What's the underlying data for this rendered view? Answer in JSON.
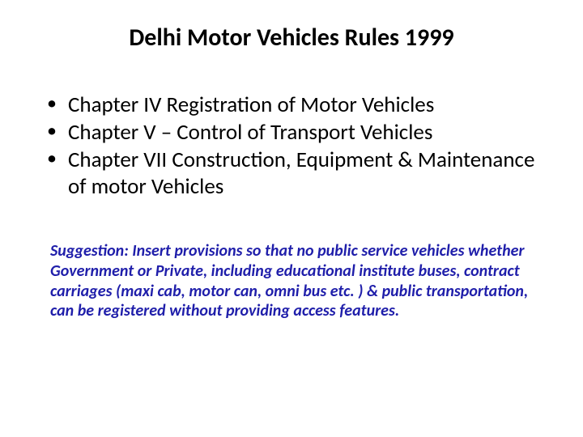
{
  "title": "Delhi Motor Vehicles Rules 1999",
  "bullets": [
    "Chapter IV Registration of Motor Vehicles",
    "Chapter V – Control of Transport Vehicles",
    "Chapter VII Construction, Equipment & Maintenance of motor Vehicles"
  ],
  "suggestion": {
    "text": "Suggestion: Insert provisions so that no public service vehicles whether Government or Private, including educational institute buses, contract carriages (maxi cab, motor can, omni bus etc. ) & public transportation, can be registered without providing access features.",
    "color": "#1f1eaa"
  },
  "colors": {
    "background": "#ffffff",
    "text": "#000000"
  },
  "typography": {
    "title_fontsize": 30,
    "title_weight": "bold",
    "bullet_fontsize": 27,
    "suggestion_fontsize": 20,
    "suggestion_weight": "bold",
    "suggestion_style": "italic",
    "font_family": "Calibri"
  }
}
